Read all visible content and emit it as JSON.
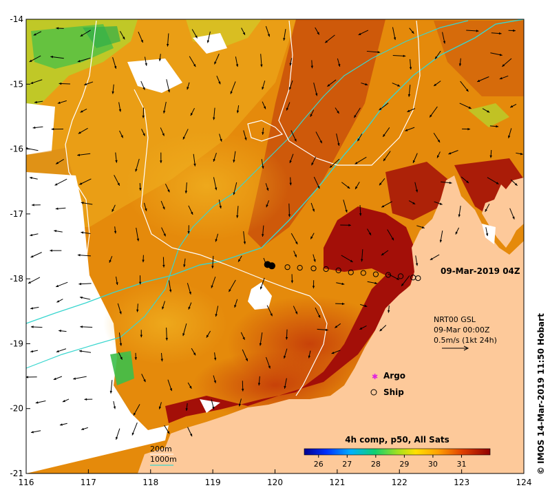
{
  "map": {
    "x_ticks": [
      "116",
      "117",
      "118",
      "119",
      "120",
      "121",
      "122",
      "123",
      "124"
    ],
    "y_ticks": [
      "-14",
      "-15",
      "-16",
      "-17",
      "-18",
      "-19",
      "-20",
      "-21"
    ],
    "lon_range": [
      116,
      124
    ],
    "lat_range": [
      -14,
      -21
    ]
  },
  "timestamp": "09-Mar-2019 04Z",
  "current_info": {
    "line1": "NRT00 GSL",
    "line2": "09-Mar 00:00Z",
    "line3": "0.5m/s (1kt 24h)"
  },
  "legend": {
    "argo_label": "Argo",
    "ship_label": "Ship",
    "contour_200": "200m",
    "contour_1000": "1000m"
  },
  "colorbar": {
    "title": "4h comp, p50, All Sats",
    "ticks": [
      "26",
      "27",
      "28",
      "29",
      "30",
      "31"
    ],
    "tick_values": [
      26,
      27,
      28,
      29,
      30,
      31
    ],
    "range": [
      25.5,
      32.0
    ]
  },
  "credit": "© IMOS 14-Mar-2019 11:50 Hobart",
  "ship_track": [
    [
      119.88,
      -17.78
    ],
    [
      119.95,
      -17.8
    ],
    [
      120.2,
      -17.82
    ],
    [
      120.4,
      -17.83
    ],
    [
      120.62,
      -17.84
    ],
    [
      120.82,
      -17.85
    ],
    [
      121.02,
      -17.87
    ],
    [
      121.22,
      -17.9
    ],
    [
      121.42,
      -17.91
    ],
    [
      121.62,
      -17.93
    ],
    [
      121.82,
      -17.94
    ],
    [
      122.02,
      -17.96
    ],
    [
      122.22,
      -17.98
    ],
    [
      122.3,
      -17.99
    ]
  ],
  "colors": {
    "land": "#fdc99a",
    "sea_warm": "#e58a0b",
    "sea_hot": "#a30f08",
    "contour_200": "#ffffff",
    "contour_1000": "#39d6cf"
  }
}
